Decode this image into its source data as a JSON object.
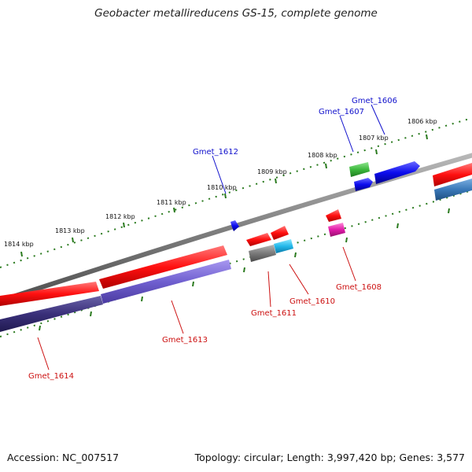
{
  "title": "Geobacter metallireducens GS-15, complete genome",
  "footer": {
    "accession": "Accession: NC_007517",
    "summary": "Topology: circular; Length: 3,997,420 bp; Genes: 3,577"
  },
  "colors": {
    "backbone": "#8a8a8a",
    "tick": "#2a7a1e",
    "gene_label_forward": "#1010cc",
    "gene_label_reverse": "#cc1010"
  },
  "scale_labels": [
    "1806 kbp",
    "1807 kbp",
    "1808 kbp",
    "1809 kbp",
    "1810 kbp",
    "1811 kbp",
    "1812 kbp",
    "1813 kbp",
    "1814 kbp"
  ],
  "gene_labels": [
    {
      "name": "Gmet_1606",
      "strand": "forward"
    },
    {
      "name": "Gmet_1607",
      "strand": "forward"
    },
    {
      "name": "Gmet_1612",
      "strand": "forward"
    },
    {
      "name": "Gmet_1608",
      "strand": "reverse"
    },
    {
      "name": "Gmet_1610",
      "strand": "reverse"
    },
    {
      "name": "Gmet_1611",
      "strand": "reverse"
    },
    {
      "name": "Gmet_1613",
      "strand": "reverse"
    },
    {
      "name": "Gmet_1614",
      "strand": "reverse"
    }
  ]
}
